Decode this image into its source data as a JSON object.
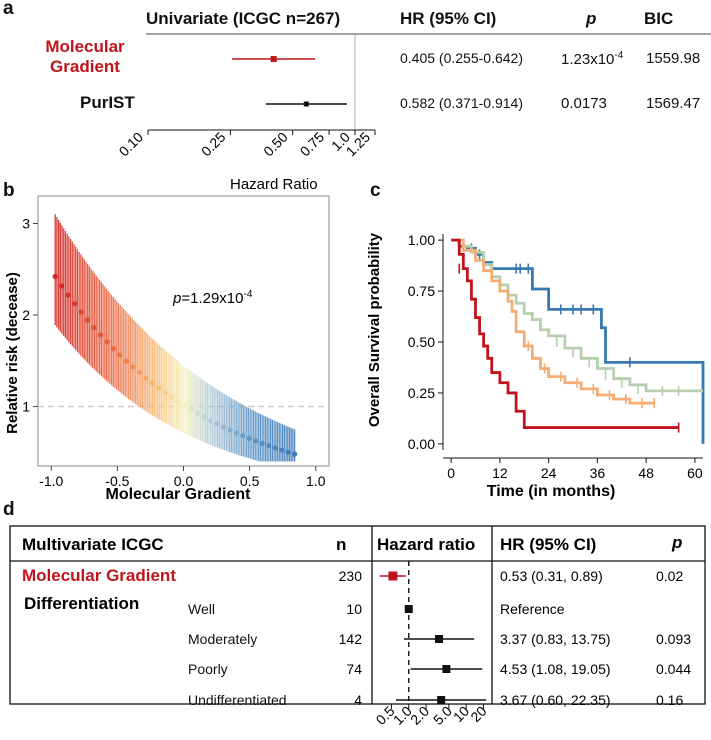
{
  "panel_labels": {
    "a": "a",
    "b": "b",
    "c": "c",
    "d": "d"
  },
  "colors": {
    "red": "#c0141c",
    "blue": "#3a78b0",
    "orange": "#f6ad74",
    "sage": "#b6cfae",
    "black": "#111111",
    "grey": "#bbbbbb"
  },
  "chart_data": [
    {
      "id": "a",
      "type": "forest",
      "title": "Univariate (ICGC n=267)",
      "columns": [
        "HR (95% CI)",
        "p",
        "BIC"
      ],
      "xlabel": "Hazard Ratio",
      "xscale": "log",
      "xlim": [
        0.1,
        1.25
      ],
      "ticks": [
        "0.10",
        "0.25",
        "0.50",
        "0.75",
        "1.0",
        "1.25"
      ],
      "tick_values": [
        0.1,
        0.25,
        0.5,
        0.75,
        1.0,
        1.25
      ],
      "reference_line": 1.0,
      "rows": [
        {
          "label": "Molecular Gradient",
          "label_lines": [
            "Molecular",
            "Gradient"
          ],
          "hr": 0.405,
          "lo": 0.255,
          "hi": 0.642,
          "hr_text": "0.405 (0.255-0.642)",
          "p_base": "1.23x10",
          "p_exp": "-4",
          "bic": "1559.98",
          "color": "#c0141c"
        },
        {
          "label": "PurIST",
          "label_lines": [
            "PurIST"
          ],
          "hr": 0.582,
          "lo": 0.371,
          "hi": 0.914,
          "hr_text": "0.582 (0.371-0.914)",
          "p_base": "0.0173",
          "p_exp": "",
          "bic": "1569.47",
          "color": "#111111"
        }
      ]
    },
    {
      "id": "b",
      "type": "scatter_errorbar",
      "xlabel": "Molecular Gradient",
      "ylabel": "Relative risk (decease)",
      "xlim": [
        -1.1,
        1.1
      ],
      "ylim": [
        0.35,
        3.3
      ],
      "xticks": [
        "-1.0",
        "-0.5",
        "0.0",
        "0.5",
        "1.0"
      ],
      "xtick_values": [
        -1.0,
        -0.5,
        0.0,
        0.5,
        1.0
      ],
      "yticks": [
        "1",
        "2",
        "3"
      ],
      "ytick_values": [
        1,
        2,
        3
      ],
      "reference_line": 1,
      "annotation_p": "p",
      "annotation_value": "=1.29x10",
      "annotation_exp": "-4",
      "n_points": 38,
      "x_range": [
        -0.97,
        0.84
      ],
      "y_at_start": 2.42,
      "y_at_end": 0.48,
      "ci_upper_at_start": 3.1,
      "ci_upper_at_end": 0.75
    },
    {
      "id": "c",
      "type": "survival",
      "xlabel": "Time (in months)",
      "ylabel": "Overall Survival probability",
      "xlim": [
        -2,
        62
      ],
      "ylim": [
        -0.03,
        1.03
      ],
      "xticks": [
        "0",
        "12",
        "24",
        "36",
        "48",
        "60"
      ],
      "xtick_values": [
        0,
        12,
        24,
        36,
        48,
        60
      ],
      "yticks": [
        "0.00",
        "0.25",
        "0.50",
        "0.75",
        "1.00"
      ],
      "ytick_values": [
        0,
        0.25,
        0.5,
        0.75,
        1.0
      ],
      "series": [
        {
          "name": "blue",
          "color": "#3a78b0",
          "times": [
            0,
            2,
            4,
            6,
            8,
            10,
            20,
            24,
            37,
            38,
            61,
            62
          ],
          "surv": [
            1.0,
            0.97,
            0.96,
            0.93,
            0.89,
            0.86,
            0.76,
            0.66,
            0.57,
            0.4,
            0.4,
            0.0
          ],
          "censors": [
            [
              5,
              0.96
            ],
            [
              7,
              0.93
            ],
            [
              16,
              0.86
            ],
            [
              17,
              0.86
            ],
            [
              19,
              0.86
            ],
            [
              27,
              0.66
            ],
            [
              30,
              0.66
            ],
            [
              32,
              0.66
            ],
            [
              35,
              0.66
            ],
            [
              44,
              0.4
            ]
          ]
        },
        {
          "name": "sage",
          "color": "#b6cfae",
          "times": [
            0,
            3,
            5,
            8,
            10,
            12,
            14,
            16,
            18,
            20,
            22,
            24,
            28,
            32,
            36,
            40,
            44,
            48,
            62
          ],
          "surv": [
            1.0,
            0.97,
            0.94,
            0.88,
            0.82,
            0.78,
            0.73,
            0.69,
            0.64,
            0.61,
            0.56,
            0.53,
            0.47,
            0.42,
            0.37,
            0.32,
            0.29,
            0.26,
            0.26
          ],
          "censors": [
            [
              26,
              0.5
            ],
            [
              30,
              0.45
            ],
            [
              34,
              0.4
            ],
            [
              38,
              0.34
            ],
            [
              42,
              0.3
            ],
            [
              46,
              0.27
            ],
            [
              52,
              0.26
            ],
            [
              56,
              0.26
            ]
          ]
        },
        {
          "name": "orange",
          "color": "#f6ad74",
          "times": [
            0,
            3,
            6,
            8,
            10,
            12,
            14,
            15,
            16,
            18,
            20,
            22,
            24,
            28,
            32,
            36,
            40,
            44,
            50
          ],
          "surv": [
            1.0,
            0.95,
            0.9,
            0.85,
            0.8,
            0.75,
            0.7,
            0.65,
            0.55,
            0.48,
            0.42,
            0.37,
            0.33,
            0.3,
            0.27,
            0.24,
            0.22,
            0.2,
            0.2
          ],
          "censors": [
            [
              19,
              0.48
            ],
            [
              23,
              0.37
            ],
            [
              27,
              0.33
            ],
            [
              31,
              0.3
            ],
            [
              35,
              0.27
            ],
            [
              39,
              0.24
            ],
            [
              43,
              0.22
            ],
            [
              47,
              0.2
            ],
            [
              50,
              0.2
            ]
          ]
        },
        {
          "name": "red",
          "color": "#c0141c",
          "times": [
            0,
            2,
            3,
            4,
            5,
            6,
            7,
            8,
            9,
            10,
            12,
            14,
            16,
            18,
            56
          ],
          "surv": [
            1.0,
            0.93,
            0.86,
            0.8,
            0.71,
            0.62,
            0.54,
            0.48,
            0.42,
            0.35,
            0.3,
            0.25,
            0.16,
            0.08,
            0.08
          ],
          "censors": [
            [
              2,
              0.86
            ],
            [
              56,
              0.08
            ]
          ]
        }
      ]
    },
    {
      "id": "d",
      "type": "forest_table",
      "title": "Multivariate ICGC",
      "n_header": "n",
      "plot_header": "Hazard ratio",
      "hr_header": "HR (95% CI)",
      "p_header": "p",
      "section_label": "Differentiation",
      "xscale": "log",
      "xlim": [
        0.28,
        24
      ],
      "ticks": [
        "0.5",
        "1.0",
        "2.0",
        "5.0",
        "10",
        "20"
      ],
      "tick_values": [
        0.5,
        1.0,
        2.0,
        5.0,
        10,
        20
      ],
      "reference_line": 1.0,
      "rows": [
        {
          "label": "Molecular Gradient",
          "n": "230",
          "hr": 0.53,
          "lo": 0.31,
          "hi": 0.89,
          "hr_text": "0.53 (0.31, 0.89)",
          "p": "0.02",
          "color": "#c0141c"
        },
        {
          "label": "Well",
          "n": "10",
          "hr": 1.0,
          "lo": 1.0,
          "hi": 1.0,
          "hr_text": "Reference",
          "p": "",
          "color": "#111111"
        },
        {
          "label": "Moderately",
          "n": "142",
          "hr": 3.37,
          "lo": 0.83,
          "hi": 13.75,
          "hr_text": "3.37 (0.83, 13.75)",
          "p": "0.093",
          "color": "#111111"
        },
        {
          "label": "Poorly",
          "n": "74",
          "hr": 4.53,
          "lo": 1.08,
          "hi": 19.05,
          "hr_text": "4.53 (1.08, 19.05)",
          "p": "0.044",
          "color": "#111111"
        },
        {
          "label": "Undifferentiated",
          "n": "4",
          "hr": 3.67,
          "lo": 0.6,
          "hi": 22.35,
          "hr_text": "3.67 (0.60, 22.35)",
          "p": "0.16",
          "color": "#111111"
        }
      ]
    }
  ]
}
